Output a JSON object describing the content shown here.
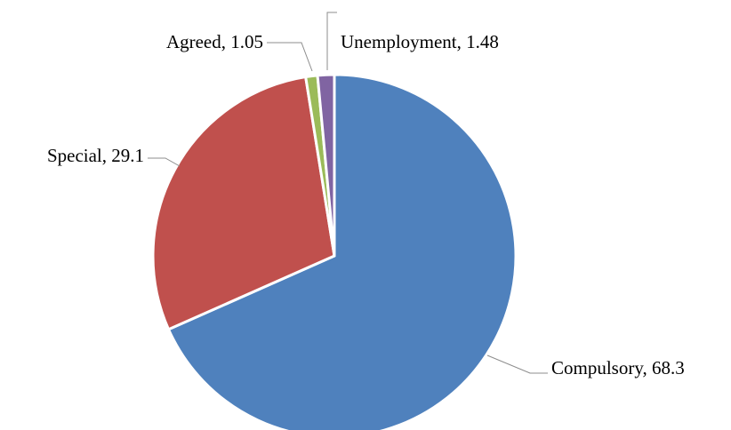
{
  "chart_data": {
    "type": "pie",
    "title": "",
    "legend": "none",
    "start_angle_deg": 0,
    "direction": "clockwise",
    "slices": [
      {
        "name": "Compulsory",
        "value": 68.3,
        "label": "Compulsory, 68.3",
        "color": "#4f81bd"
      },
      {
        "name": "Special",
        "value": 29.1,
        "label": "Special, 29.1",
        "color": "#c0504d"
      },
      {
        "name": "Agreed",
        "value": 1.05,
        "label": "Agreed, 1.05",
        "color": "#9bbb59"
      },
      {
        "name": "Unemployment",
        "value": 1.48,
        "label": "Unemployment, 1.48",
        "color": "#8064a2"
      }
    ]
  }
}
